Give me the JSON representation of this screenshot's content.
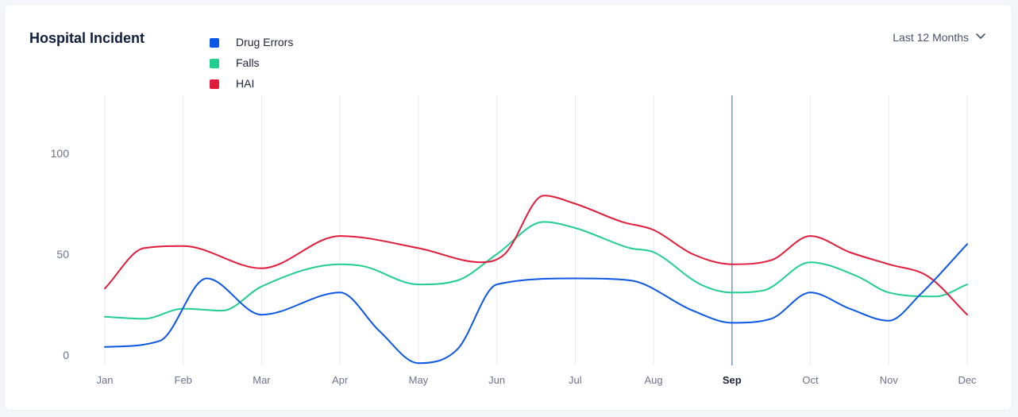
{
  "header": {
    "title": "Hospital Incident",
    "range_label": "Last 12 Months",
    "range_icon": "chevron-down-icon"
  },
  "colors": {
    "drug_errors": "#0b57e6",
    "falls": "#22ce8f",
    "hai": "#e11d3c",
    "grid": "#e8ebf1",
    "highlight": "#5b8def"
  },
  "chart_data": {
    "type": "line",
    "title": "Hospital Incident",
    "xlabel": "",
    "ylabel": "",
    "categories": [
      "Jan",
      "Feb",
      "Mar",
      "Apr",
      "May",
      "Jun",
      "Jul",
      "Aug",
      "Sep",
      "Oct",
      "Nov",
      "Dec"
    ],
    "highlighted_category": "Sep",
    "yticks": [
      0,
      50,
      100
    ],
    "ylim": [
      -5,
      130
    ],
    "grid": "vertical",
    "legend_position": "top-left",
    "series": [
      {
        "name": "Drug Errors",
        "color": "#0b57e6",
        "x": [
          0,
          0.7,
          1.3,
          2,
          3,
          3.5,
          4,
          4.5,
          5,
          6,
          6.7,
          7.5,
          8,
          8.5,
          9,
          9.5,
          10,
          10.4,
          11
        ],
        "values": [
          4,
          7,
          38,
          20,
          31,
          12,
          -4,
          3,
          35,
          38,
          37,
          22,
          16,
          18,
          31,
          23,
          17,
          30,
          55
        ]
      },
      {
        "name": "Falls",
        "color": "#22ce8f",
        "x": [
          0,
          0.5,
          1,
          1.5,
          2,
          3,
          3.3,
          4,
          4.5,
          5,
          5.6,
          6,
          6.7,
          7,
          7.6,
          8,
          8.4,
          9,
          9.6,
          10,
          10.6,
          11
        ],
        "values": [
          19,
          18,
          23,
          22,
          34,
          45,
          44,
          35,
          37,
          50,
          66,
          63,
          53,
          51,
          35,
          31,
          32,
          46,
          39,
          31,
          29,
          35
        ]
      },
      {
        "name": "HAI",
        "color": "#e11d3c",
        "x": [
          0,
          0.5,
          1,
          2,
          3,
          4,
          4.8,
          5.1,
          5.6,
          6,
          6.6,
          7,
          7.5,
          8,
          8.5,
          9,
          9.5,
          10,
          10.5,
          11
        ],
        "values": [
          33,
          53,
          54,
          43,
          59,
          53,
          46,
          50,
          79,
          75,
          66,
          62,
          50,
          45,
          47,
          59,
          51,
          45,
          39,
          20
        ]
      }
    ]
  }
}
